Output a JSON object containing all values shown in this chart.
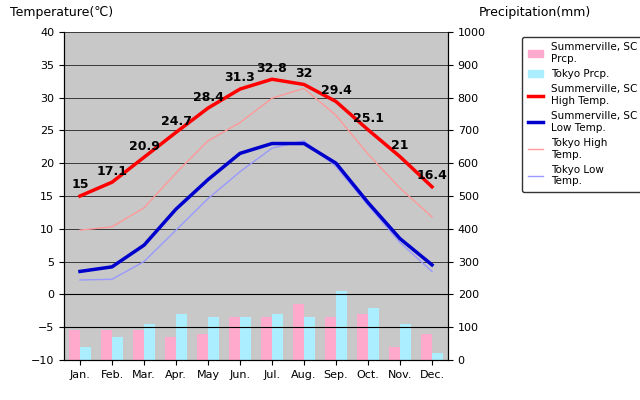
{
  "months": [
    "Jan.",
    "Feb.",
    "Mar.",
    "Apr.",
    "May",
    "Jun.",
    "Jul.",
    "Aug.",
    "Sep.",
    "Oct.",
    "Nov.",
    "Dec."
  ],
  "summerville_high": [
    15,
    17.1,
    20.9,
    24.7,
    28.4,
    31.3,
    32.8,
    32,
    29.4,
    25.1,
    21,
    16.4
  ],
  "summerville_low": [
    3.5,
    4.2,
    7.5,
    13.0,
    17.5,
    21.5,
    23.0,
    23.0,
    20.0,
    14.0,
    8.5,
    4.5
  ],
  "tokyo_high": [
    9.8,
    10.3,
    13.2,
    18.5,
    23.4,
    26.2,
    29.9,
    31.4,
    27.3,
    21.4,
    16.2,
    11.8
  ],
  "tokyo_low": [
    2.2,
    2.3,
    5.0,
    9.8,
    14.6,
    18.7,
    22.3,
    23.4,
    19.5,
    13.6,
    7.9,
    3.5
  ],
  "summerville_precip": [
    -5.5,
    -5.5,
    -5.5,
    -6.5,
    -6.0,
    -3.5,
    -3.5,
    -1.5,
    -3.5,
    -3.0,
    -8.0,
    -6.0
  ],
  "tokyo_precip": [
    -8.0,
    -6.5,
    -4.5,
    -3.0,
    -3.5,
    -3.5,
    -3.0,
    -3.5,
    0.5,
    -2.0,
    -4.5,
    -9.0
  ],
  "ylim": [
    -10,
    40
  ],
  "y2lim": [
    0,
    1000
  ],
  "title_left": "Temperature(℃)",
  "title_right": "Precipitation(mm)",
  "bg_color": "#c8c8c8",
  "summerville_high_color": "#ff0000",
  "summerville_low_color": "#0000cc",
  "tokyo_high_color": "#ff9999",
  "tokyo_low_color": "#9999ff",
  "summerville_precip_color": "#ffaacc",
  "tokyo_precip_color": "#aaeeff",
  "yticks_left": [
    -10,
    -5,
    0,
    5,
    10,
    15,
    20,
    25,
    30,
    35,
    40
  ],
  "yticks_right": [
    0,
    100,
    200,
    300,
    400,
    500,
    600,
    700,
    800,
    900,
    1000
  ],
  "high_label_fontsize": 9,
  "axis_label_fontsize": 9,
  "tick_fontsize": 8
}
